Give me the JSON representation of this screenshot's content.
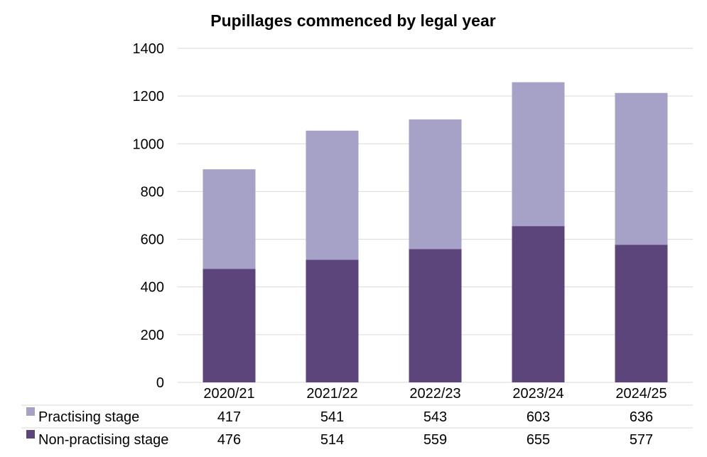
{
  "chart_data": {
    "type": "bar",
    "stacked": true,
    "title": "Pupillages commenced by legal year",
    "xlabel": "",
    "ylabel": "",
    "categories": [
      "2020/21",
      "2021/22",
      "2022/23",
      "2023/24",
      "2024/25"
    ],
    "ylim": [
      0,
      1400
    ],
    "yticks": [
      0,
      200,
      400,
      600,
      800,
      1000,
      1200,
      1400
    ],
    "grid": true,
    "legend": "data-table-below",
    "series": [
      {
        "name": "Non-practising stage",
        "values": [
          476,
          514,
          559,
          655,
          577
        ],
        "color": "#5c457a"
      },
      {
        "name": "Practising stage",
        "values": [
          417,
          541,
          543,
          603,
          636
        ],
        "color": "#a6a2c7"
      }
    ],
    "table_rows": [
      {
        "name": "Practising stage",
        "values": [
          "417",
          "541",
          "543",
          "603",
          "636"
        ],
        "color": "#a6a2c7"
      },
      {
        "name": "Non-practising stage",
        "values": [
          "476",
          "514",
          "559",
          "655",
          "577"
        ],
        "color": "#5c457a"
      }
    ]
  }
}
